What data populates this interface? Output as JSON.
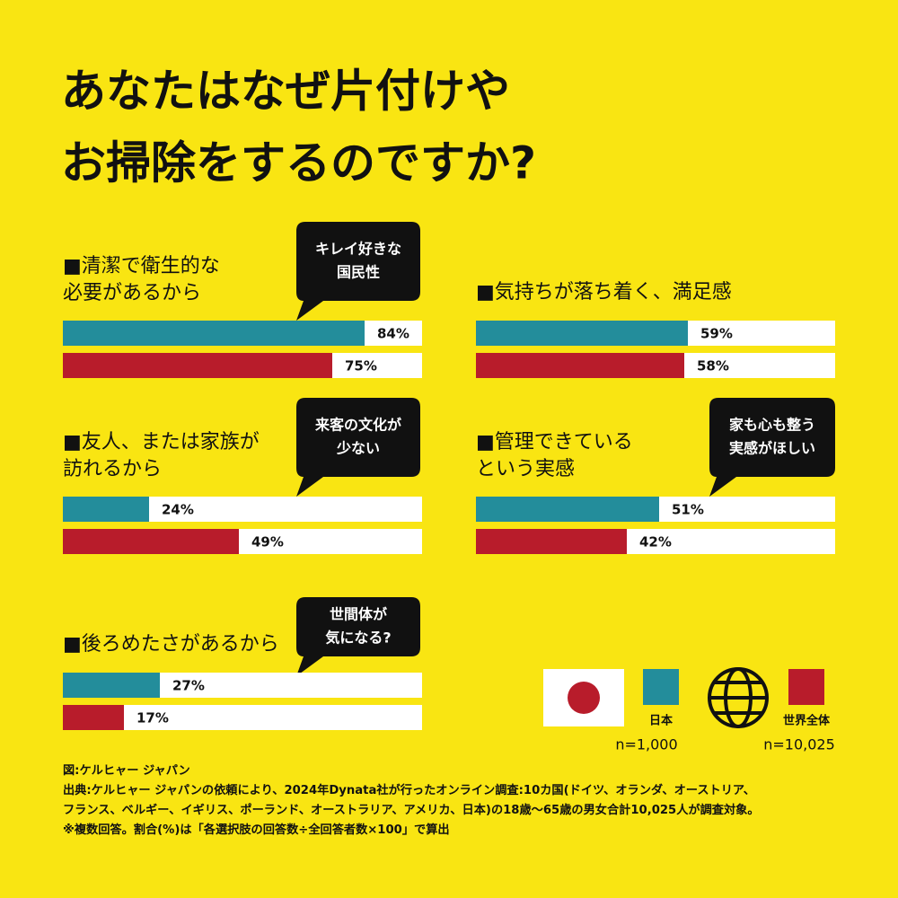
{
  "title": [
    "あなたはなぜ片付けや",
    "お掃除をするのですか?"
  ],
  "chart_data": [
    {
      "type": "bar",
      "orientation": "horizontal",
      "title": [
        "■清潔で衛生的な",
        "必要があるから"
      ],
      "annotation": [
        "キレイ好きな",
        "国民性"
      ],
      "xlim": [
        0,
        100
      ],
      "series": [
        {
          "name": "日本",
          "color": "#238d9b",
          "values": [
            84
          ],
          "value_labels": [
            "84%"
          ]
        },
        {
          "name": "世界全体",
          "color": "#b81c2b",
          "values": [
            75
          ],
          "value_labels": [
            "75%"
          ]
        }
      ]
    },
    {
      "type": "bar",
      "orientation": "horizontal",
      "title": [
        "■気持ちが落ち着く、満足感"
      ],
      "xlim": [
        0,
        100
      ],
      "series": [
        {
          "name": "日本",
          "color": "#238d9b",
          "values": [
            59
          ],
          "value_labels": [
            "59%"
          ]
        },
        {
          "name": "世界全体",
          "color": "#b81c2b",
          "values": [
            58
          ],
          "value_labels": [
            "58%"
          ]
        }
      ]
    },
    {
      "type": "bar",
      "orientation": "horizontal",
      "title": [
        "■友人、または家族が",
        "訪れるから"
      ],
      "annotation": [
        "来客の文化が",
        "少ない"
      ],
      "xlim": [
        0,
        100
      ],
      "series": [
        {
          "name": "日本",
          "color": "#238d9b",
          "values": [
            24
          ],
          "value_labels": [
            "24%"
          ]
        },
        {
          "name": "世界全体",
          "color": "#b81c2b",
          "values": [
            49
          ],
          "value_labels": [
            "49%"
          ]
        }
      ]
    },
    {
      "type": "bar",
      "orientation": "horizontal",
      "title": [
        "■管理できている",
        "という実感"
      ],
      "annotation": [
        "家も心も整う",
        "実感がほしい"
      ],
      "xlim": [
        0,
        100
      ],
      "series": [
        {
          "name": "日本",
          "color": "#238d9b",
          "values": [
            51
          ],
          "value_labels": [
            "51%"
          ]
        },
        {
          "name": "世界全体",
          "color": "#b81c2b",
          "values": [
            42
          ],
          "value_labels": [
            "42%"
          ]
        }
      ]
    },
    {
      "type": "bar",
      "orientation": "horizontal",
      "title": [
        "■後ろめたさがあるから"
      ],
      "annotation": [
        "世間体が",
        "気になる?"
      ],
      "xlim": [
        0,
        100
      ],
      "series": [
        {
          "name": "日本",
          "color": "#238d9b",
          "values": [
            27
          ],
          "value_labels": [
            "27%"
          ]
        },
        {
          "name": "世界全体",
          "color": "#b81c2b",
          "values": [
            17
          ],
          "value_labels": [
            "17%"
          ]
        }
      ]
    }
  ],
  "sample_sizes": [
    "n=1,000",
    "n=10,025"
  ],
  "source": [
    "図:ケルヒャー ジャパン",
    "出典:ケルヒャー ジャパンの依頼により、2024年Dynata社が行ったオンライン調査:10カ国(ドイツ、オランダ、オーストリア、",
    "フランス、ベルギー、イギリス、ポーランド、オーストラリア、アメリカ、日本)の18歳〜65歳の男女合計10,025人が調査対象。",
    "※複数回答。割合(%)は「各選択肢の回答数÷全回答者数×100」で算出"
  ]
}
